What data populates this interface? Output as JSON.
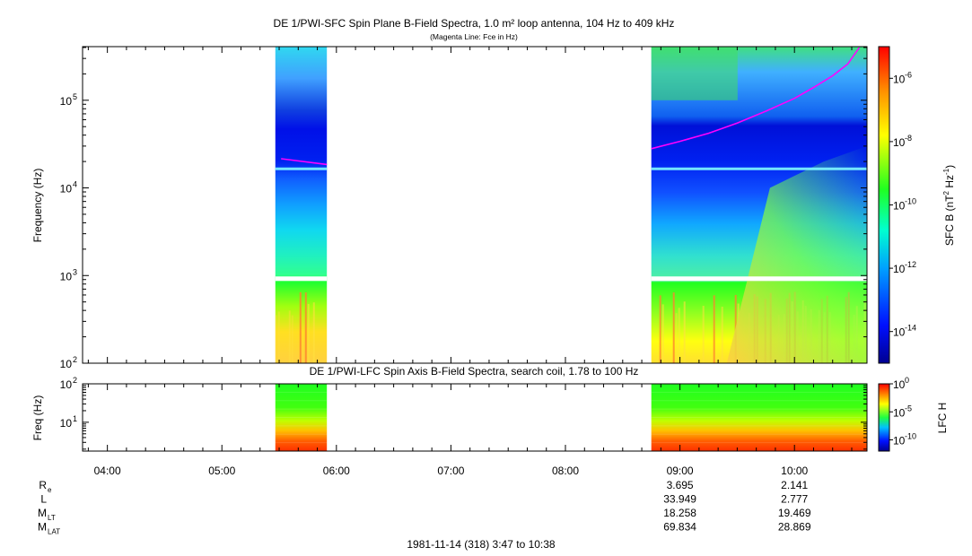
{
  "chart_data": [
    {
      "type": "heatmap",
      "title": "DE 1/PWI-SFC  Spin Plane B-Field Spectra, 1.0 m² loop antenna, 104 Hz to 409 kHz",
      "subtitle": "(Magenta Line: Fce in Hz)",
      "ylabel": "Frequency (Hz)",
      "yscale": "log",
      "ylim": [
        100,
        409000
      ],
      "yticks": [
        {
          "value": 100,
          "label": "10",
          "exp": "2"
        },
        {
          "value": 1000,
          "label": "10",
          "exp": "3"
        },
        {
          "value": 10000,
          "label": "10",
          "exp": "4"
        },
        {
          "value": 100000,
          "label": "10",
          "exp": "5"
        }
      ],
      "colorbar": {
        "label_pre": "SFC B (nT",
        "label_sup1": "2",
        "label_mid": " Hz",
        "label_sup2": "-1",
        "label_post": ")",
        "scale": "log",
        "range": [
          1e-15,
          1e-05
        ],
        "ticks": [
          {
            "value": 1e-06,
            "label": "10",
            "exp": "-6"
          },
          {
            "value": 1e-08,
            "label": "10",
            "exp": "-8"
          },
          {
            "value": 1e-10,
            "label": "10",
            "exp": "-10"
          },
          {
            "value": 1e-12,
            "label": "10",
            "exp": "-12"
          },
          {
            "value": 1e-14,
            "label": "10",
            "exp": "-14"
          }
        ]
      },
      "data_intervals": [
        {
          "start": "05:28",
          "end": "05:55"
        },
        {
          "start": "08:45",
          "end": "10:38"
        }
      ],
      "series": [
        {
          "name": "Fce in Hz",
          "color": "#ff00ff",
          "x": [
            "05:31",
            "05:55"
          ],
          "y": [
            21500,
            18500
          ]
        },
        {
          "name": "Fce in Hz",
          "color": "#ff00ff",
          "x": [
            "08:45",
            "09:00",
            "09:15",
            "09:30",
            "09:45",
            "10:00",
            "10:10",
            "10:20",
            "10:28",
            "10:34"
          ],
          "y": [
            28000,
            34000,
            42000,
            55000,
            75000,
            105000,
            140000,
            190000,
            260000,
            400000
          ]
        }
      ]
    },
    {
      "type": "heatmap",
      "title": "DE 1/PWI-LFC  Spin Axis B-Field Spectra, search coil, 1.78 to 100 Hz",
      "ylabel": "Freq (Hz)",
      "yscale": "log",
      "ylim": [
        1.78,
        100
      ],
      "yticks": [
        {
          "value": 10,
          "label": "10",
          "exp": "1"
        },
        {
          "value": 100,
          "label": "10",
          "exp": "2"
        }
      ],
      "colorbar": {
        "label": "LFC H",
        "scale": "log",
        "range": [
          1e-12,
          1
        ],
        "ticks": [
          {
            "value": 1,
            "label": "10",
            "exp": "0"
          },
          {
            "value": 1e-05,
            "label": "10",
            "exp": "-5"
          },
          {
            "value": 1e-10,
            "label": "10",
            "exp": "-10"
          }
        ]
      },
      "data_intervals": [
        {
          "start": "05:28",
          "end": "05:55"
        },
        {
          "start": "08:45",
          "end": "10:38"
        }
      ]
    }
  ],
  "time_axis": {
    "range": [
      "03:47",
      "10:38"
    ],
    "ticks": [
      "04:00",
      "05:00",
      "06:00",
      "07:00",
      "08:00",
      "09:00",
      "10:00"
    ],
    "footer": "1981-11-14 (318) 3:47 to 10:38"
  },
  "ephemeris": {
    "rows": [
      {
        "label": "R",
        "sub": "e",
        "values": [
          "3.695",
          "2.141"
        ]
      },
      {
        "label": "L",
        "sub": "",
        "values": [
          "33.949",
          "2.777"
        ]
      },
      {
        "label": "M",
        "sub": "LT",
        "values": [
          "18.258",
          "19.469"
        ]
      },
      {
        "label": "M",
        "sub": "LAT",
        "values": [
          "69.834",
          "28.869"
        ]
      }
    ],
    "value_times": [
      "09:00",
      "10:00"
    ]
  }
}
